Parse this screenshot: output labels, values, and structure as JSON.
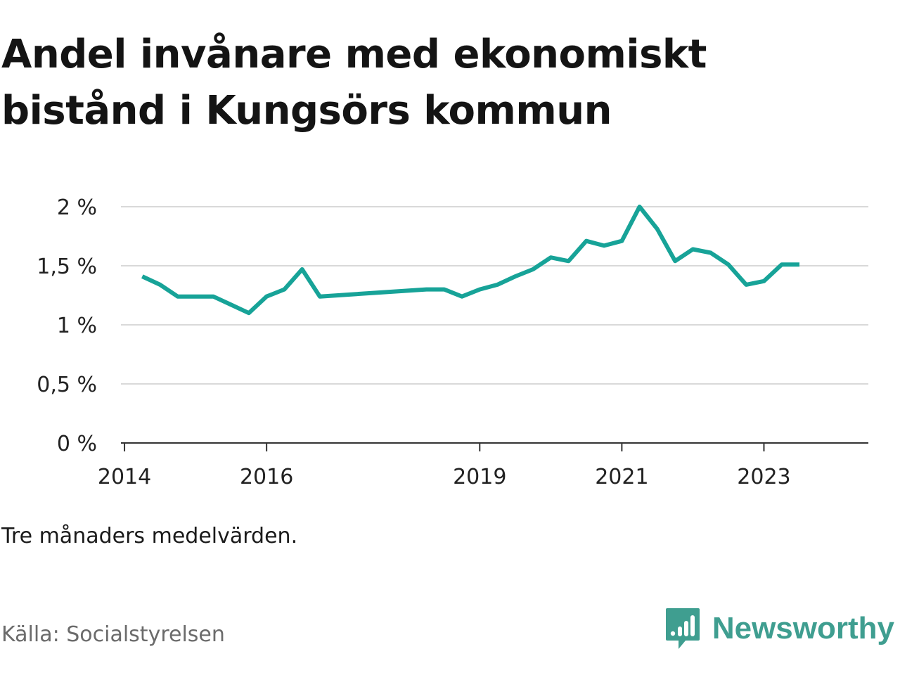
{
  "title_line1": "Andel invånare med ekonomiskt",
  "title_line2": "bistånd i Kungsörs kommun",
  "note": "Tre månaders medelvärden.",
  "source": "Källa: Socialstyrelsen",
  "brand": "Newsworthy",
  "colors": {
    "line": "#17a398",
    "grid": "#d9d9d9",
    "axis": "#333333",
    "brand": "#3f9e90"
  },
  "chart_data": {
    "type": "line",
    "title": "Andel invånare med ekonomiskt bistånd i Kungsörs kommun",
    "xlabel": "",
    "ylabel": "",
    "y_ticks": [
      0,
      0.5,
      1,
      1.5,
      2
    ],
    "y_tick_labels": [
      "0 %",
      "0,5 %",
      "1 %",
      "1,5 %",
      "2 %"
    ],
    "x_ticks": [
      2014,
      2016,
      2019,
      2021,
      2023
    ],
    "x_tick_labels": [
      "2014",
      "2016",
      "2019",
      "2021",
      "2023"
    ],
    "xlim": [
      2013.95,
      2024.47
    ],
    "ylim": [
      0,
      2
    ],
    "grid": true,
    "series": [
      {
        "x": [
          2014.25,
          2014.5,
          2014.75,
          2015.0,
          2015.25,
          2015.5,
          2015.75,
          2016.0,
          2016.25,
          2016.5,
          2016.75,
          2018.25,
          2018.5,
          2018.75,
          2019.0,
          2019.25,
          2019.5,
          2019.75,
          2020.0,
          2020.25,
          2020.5,
          2020.75,
          2021.0,
          2021.25,
          2021.5,
          2021.75,
          2022.0,
          2022.25,
          2022.5,
          2022.75,
          2023.0,
          2023.25,
          2023.5
        ],
        "values": [
          1.41,
          1.34,
          1.24,
          1.24,
          1.24,
          1.17,
          1.1,
          1.24,
          1.3,
          1.47,
          1.24,
          1.3,
          1.3,
          1.24,
          1.3,
          1.34,
          1.41,
          1.47,
          1.57,
          1.54,
          1.71,
          1.67,
          1.71,
          2.0,
          1.81,
          1.54,
          1.64,
          1.61,
          1.51,
          1.34,
          1.37,
          1.51,
          1.51
        ]
      }
    ]
  }
}
